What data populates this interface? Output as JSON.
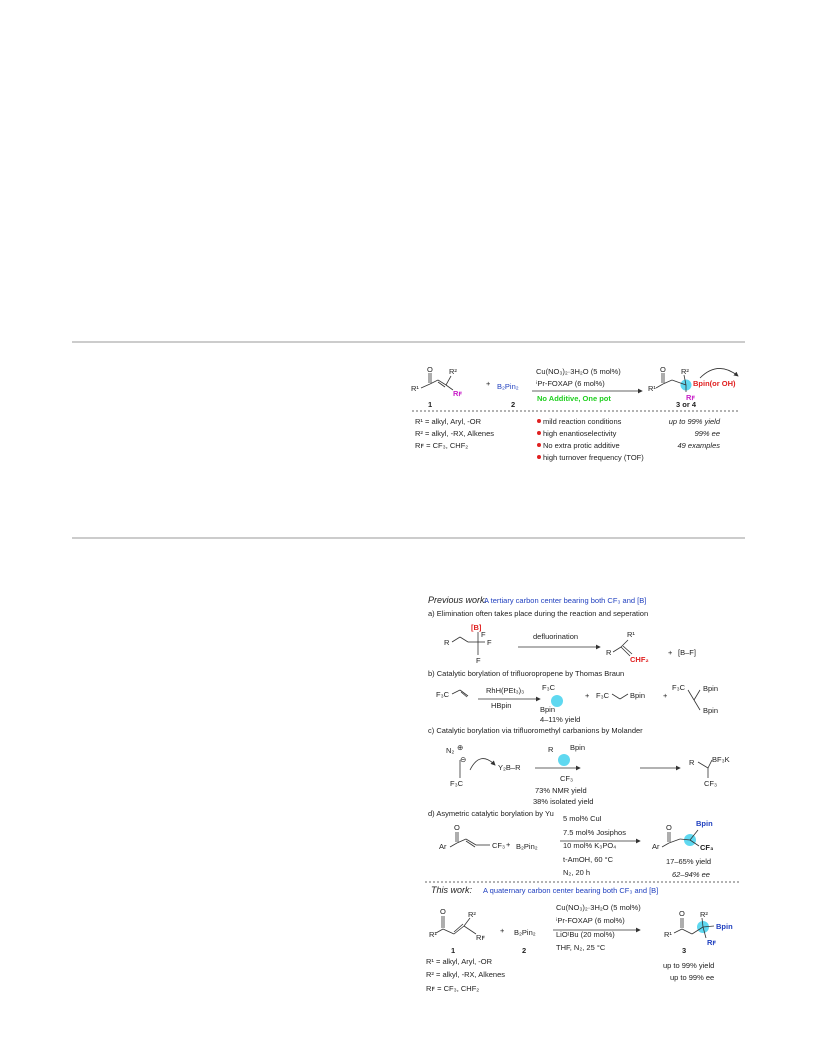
{
  "figure_1": {
    "reactant_labels": [
      "O",
      "R¹",
      "R²",
      "Rꜰ"
    ],
    "plus": "+",
    "reagent": "B₂Pin₂",
    "numbers": [
      "1",
      "2",
      "3 or 4"
    ],
    "conditions": [
      "Cu(NO₃)₂·3H₂O (5 mol%)",
      "ⁱPr-FOXAP (6 mol%)"
    ],
    "highlight": "No Additive, One pot",
    "product_labels": [
      "O",
      "R¹",
      "R²",
      "Rꜰ",
      "Bpin(or OH)"
    ],
    "substituents": [
      "R¹ = alkyl, Aryl, -OR",
      "R² = alkyl, -RX, Alkenes",
      "Rꜰ = CF₃, CHF₂"
    ],
    "features": [
      "mild reaction conditions",
      "high enantioselectivity",
      "No extra protic additive",
      "high turnover frequency (TOF)"
    ],
    "results": [
      "up to 99% yield",
      "99% ee",
      "49 examples"
    ]
  },
  "figure_2": {
    "previous_heading": "Previous work:",
    "previous_desc": "A tertiary carbon center bearing both CF₃ and [B]",
    "a": {
      "caption": "a) Elimination often takes place during the reaction and seperation",
      "labels": [
        "R",
        "[B]",
        "F",
        "F",
        "F"
      ],
      "reagent": "defluorination",
      "product_labels": [
        "R",
        "R¹",
        "CHF₂",
        "+",
        "[B–F]"
      ]
    },
    "b": {
      "caption": "b) Catalytic borylation of trifluoropropene by Thomas Braun",
      "substrate": "F₃C",
      "conditions": [
        "RhH(PEt₃)₃",
        "HBpin"
      ],
      "products": [
        "F₃C",
        "Bpin",
        "+",
        "F₃C",
        "Bpin",
        "+",
        "F₃C",
        "Bpin",
        "Bpin"
      ],
      "yield": "4–11% yield"
    },
    "c": {
      "caption": "c) Catalytic borylation via trifluoromethyl carbanions by Molander",
      "labels": [
        "N₂",
        "⊕",
        "⊖",
        "F₃C",
        "Y₂B–R",
        "R",
        "Bpin",
        "CF₃",
        "R",
        "BF₃K",
        "CF₃"
      ],
      "yields": [
        "73% NMR yield",
        "38% isolated yield"
      ]
    },
    "d": {
      "caption": "d) Asymetric catalytic borylation by Yu",
      "labels": [
        "O",
        "Ar",
        "CF₃",
        "+",
        "B₂Pin₂"
      ],
      "conditions": [
        "5 mol% CuI",
        "7.5 mol% Josiphos",
        "10 mol% K₃PO₄",
        "t-AmOH, 60 °C",
        "N₂, 20 h"
      ],
      "product_labels": [
        "O",
        "Ar",
        "Bpin",
        "CF₃"
      ],
      "results": [
        "17–65% yield",
        "62–94% ee"
      ]
    },
    "this_heading": "This work:",
    "this_desc": "A quaternary carbon center bearing both CF₃ and [B]",
    "this": {
      "labels": [
        "O",
        "R¹",
        "R²",
        "Rꜰ",
        "+",
        "B₂Pin₂"
      ],
      "numbers": [
        "1",
        "2",
        "3"
      ],
      "conditions": [
        "Cu(NO₃)₂·3H₂O (5 mol%)",
        "ⁱPr-FOXAP (6 mol%)",
        "LiOᵗBu (20 mol%)",
        "THF, N₂, 25 °C"
      ],
      "product_labels": [
        "O",
        "R¹",
        "R²",
        "Bpin",
        "Rꜰ"
      ],
      "results": [
        "up to 99% yield",
        "up to 99% ee"
      ],
      "substituents": [
        "R¹ = alkyl, Aryl, -OR",
        "R² = alkyl, -RX, Alkenes",
        "Rꜰ = CF₃, CHF₂"
      ]
    }
  }
}
